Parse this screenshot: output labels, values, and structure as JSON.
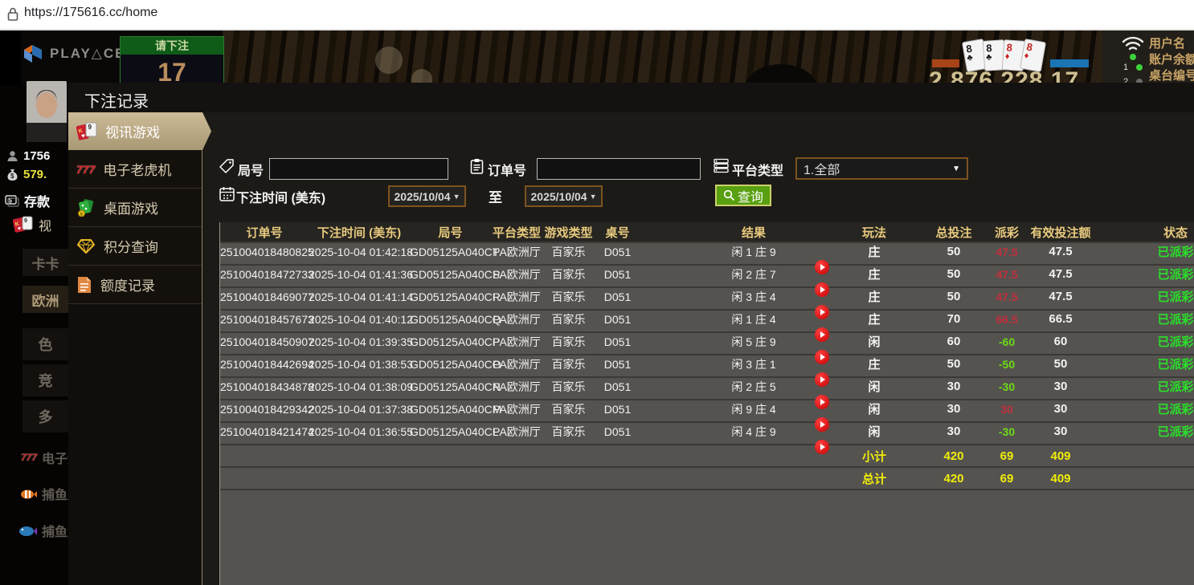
{
  "browser": {
    "url": "https://175616.cc/home"
  },
  "top": {
    "brand": "PLAY△CE",
    "bet_prompt": "请下注",
    "countdown": "17",
    "cards": [
      {
        "rank": "8",
        "suit": "♣",
        "color": "#1b1b1b"
      },
      {
        "rank": "8",
        "suit": "♣",
        "color": "#1b1b1b"
      },
      {
        "rank": "8",
        "suit": "♦",
        "color": "#c62222"
      },
      {
        "rank": "8",
        "suit": "♦",
        "color": "#c62222"
      }
    ],
    "balance_big": "2,876,228.17",
    "info_lines": [
      "用户名",
      "账户余额",
      "桌台编号"
    ],
    "seat_numbers": [
      "1",
      "2"
    ]
  },
  "rail": {
    "user_id": "1756",
    "balance": "579.",
    "deposit_label": "存款",
    "video_label": "视",
    "lobby1": "卡卡",
    "lobby2": "欧洲",
    "lobby3": "色",
    "lobby4": "竞",
    "lobby5": "多",
    "slots_label": "电子游戏",
    "fish1_label": "捕鱼王",
    "fish2_label": "捕鱼大师"
  },
  "modal": {
    "title": "下注记录",
    "sidebar": [
      {
        "label": "视讯游戏"
      },
      {
        "label": "电子老虎机"
      },
      {
        "label": "桌面游戏"
      },
      {
        "label": "积分查询"
      },
      {
        "label": "额度记录"
      }
    ],
    "filters": {
      "round_label": "局号",
      "order_label": "订单号",
      "platform_label": "平台类型",
      "platform_value": "1.全部",
      "time_label": "下注时间 (美东)",
      "date_from": "2025/10/04",
      "to_label": "至",
      "date_to": "2025/10/04",
      "search_label": "查询"
    },
    "table": {
      "headers": [
        "订单号",
        "下注时间 (美东)",
        "局号",
        "平台类型",
        "游戏类型",
        "桌号",
        "结果",
        "玩法",
        "总投注",
        "派彩",
        "有效投注额",
        "状态"
      ],
      "rows": [
        {
          "cells": [
            "251004018480825",
            "2025-10-04 01:42:18",
            "GD05125A040CT",
            "PA欧洲厅",
            "百家乐",
            "D051",
            "闲 1 庄 9",
            "庄",
            "50",
            "47.5",
            "47.5",
            "已派彩"
          ],
          "neg": false
        },
        {
          "cells": [
            "251004018472733",
            "2025-10-04 01:41:36",
            "GD05125A040CS",
            "PA欧洲厅",
            "百家乐",
            "D051",
            "闲 2 庄 7",
            "庄",
            "50",
            "47.5",
            "47.5",
            "已派彩"
          ],
          "neg": false
        },
        {
          "cells": [
            "251004018469077",
            "2025-10-04 01:41:14",
            "GD05125A040CR",
            "PA欧洲厅",
            "百家乐",
            "D051",
            "闲 3 庄 4",
            "庄",
            "50",
            "47.5",
            "47.5",
            "已派彩"
          ],
          "neg": false
        },
        {
          "cells": [
            "251004018457673",
            "2025-10-04 01:40:12",
            "GD05125A040CQ",
            "PA欧洲厅",
            "百家乐",
            "D051",
            "闲 1 庄 4",
            "庄",
            "70",
            "66.5",
            "66.5",
            "已派彩"
          ],
          "neg": false
        },
        {
          "cells": [
            "251004018450907",
            "2025-10-04 01:39:35",
            "GD05125A040CP",
            "PA欧洲厅",
            "百家乐",
            "D051",
            "闲 5 庄 9",
            "闲",
            "60",
            "-60",
            "60",
            "已派彩"
          ],
          "neg": true
        },
        {
          "cells": [
            "251004018442694",
            "2025-10-04 01:38:53",
            "GD05125A040CO",
            "PA欧洲厅",
            "百家乐",
            "D051",
            "闲 3 庄 1",
            "庄",
            "50",
            "-50",
            "50",
            "已派彩"
          ],
          "neg": true
        },
        {
          "cells": [
            "251004018434878",
            "2025-10-04 01:38:09",
            "GD05125A040CN",
            "PA欧洲厅",
            "百家乐",
            "D051",
            "闲 2 庄 5",
            "闲",
            "30",
            "-30",
            "30",
            "已派彩"
          ],
          "neg": true
        },
        {
          "cells": [
            "251004018429342",
            "2025-10-04 01:37:38",
            "GD05125A040CM",
            "PA欧洲厅",
            "百家乐",
            "D051",
            "闲 9 庄 4",
            "闲",
            "30",
            "30",
            "30",
            "已派彩"
          ],
          "neg": false
        },
        {
          "cells": [
            "251004018421474",
            "2025-10-04 01:36:55",
            "GD05125A040CL",
            "PA欧洲厅",
            "百家乐",
            "D051",
            "闲 4 庄 9",
            "闲",
            "30",
            "-30",
            "30",
            "已派彩"
          ],
          "neg": true
        }
      ],
      "subtotal": {
        "label": "小计",
        "bet": "420",
        "payout": "69",
        "valid": "409"
      },
      "total": {
        "label": "总计",
        "bet": "420",
        "payout": "69",
        "valid": "409"
      }
    }
  }
}
